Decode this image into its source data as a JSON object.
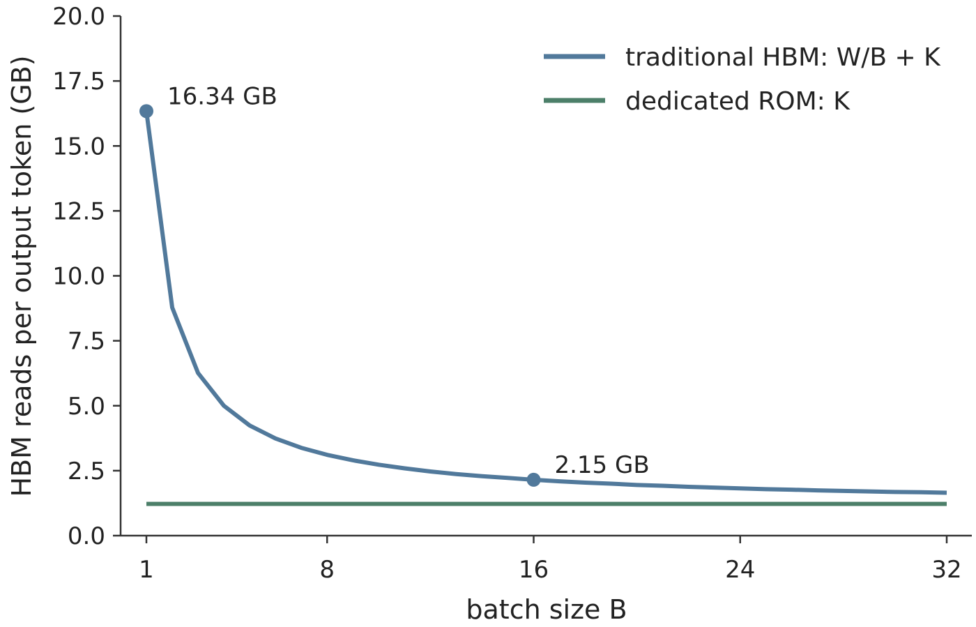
{
  "chart_data": {
    "type": "line",
    "title": "",
    "xlabel": "batch size B",
    "ylabel": "HBM reads per output token (GB)",
    "xlim": [
      1,
      32
    ],
    "ylim": [
      0,
      20
    ],
    "xticks": [
      1,
      8,
      16,
      24,
      32
    ],
    "yticks": [
      "0.0",
      "2.5",
      "5.0",
      "7.5",
      "10.0",
      "12.5",
      "15.0",
      "17.5",
      "20.0"
    ],
    "legend_position": "top-right",
    "grid": false,
    "series": [
      {
        "name": "traditional HBM: W/B + K",
        "color": "#51799b",
        "x": [
          1,
          2,
          3,
          4,
          5,
          6,
          7,
          8,
          9,
          10,
          11,
          12,
          13,
          14,
          15,
          16,
          17,
          18,
          19,
          20,
          21,
          22,
          23,
          24,
          25,
          26,
          27,
          28,
          29,
          30,
          31,
          32
        ],
        "y": [
          16.34,
          8.78,
          6.26,
          5.0,
          4.24,
          3.74,
          3.38,
          3.11,
          2.9,
          2.73,
          2.59,
          2.47,
          2.37,
          2.29,
          2.22,
          2.15,
          2.09,
          2.04,
          2.0,
          1.95,
          1.92,
          1.88,
          1.85,
          1.82,
          1.79,
          1.77,
          1.74,
          1.72,
          1.7,
          1.68,
          1.67,
          1.65
        ]
      },
      {
        "name": "dedicated ROM: K",
        "color": "#4c7f69",
        "x": [
          1,
          32
        ],
        "y": [
          1.22,
          1.22
        ]
      }
    ],
    "annotations": [
      {
        "x": 1,
        "y": 16.34,
        "text": "16.34 GB"
      },
      {
        "x": 16,
        "y": 2.15,
        "text": "2.15 GB"
      }
    ]
  }
}
